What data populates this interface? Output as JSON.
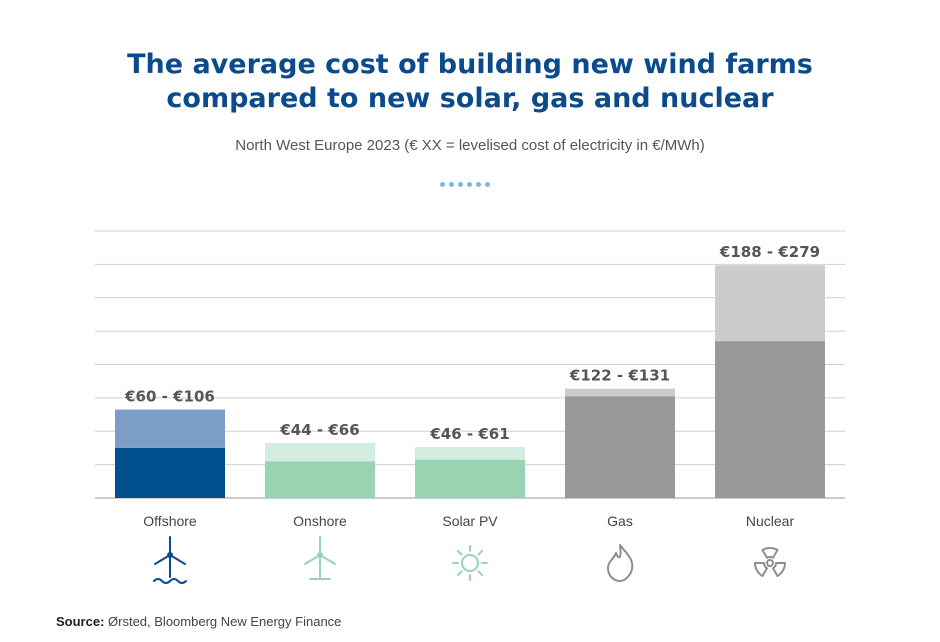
{
  "chart_data": {
    "type": "bar",
    "title_line1": "The average cost of building new wind farms",
    "title_line2": "compared to new solar, gas and nuclear",
    "subtitle": "North West Europe 2023 (€ XX = levelised cost of electricity in €/MWh)",
    "ylim": [
      0,
      320
    ],
    "grid": true,
    "categories": [
      "Offshore",
      "Onshore",
      "Solar PV",
      "Gas",
      "Nuclear"
    ],
    "series": [
      {
        "name": "low",
        "values": [
          60,
          44,
          46,
          122,
          188
        ]
      },
      {
        "name": "high",
        "values": [
          106,
          66,
          61,
          131,
          279
        ]
      }
    ],
    "range_labels": [
      "€60 - €106",
      "€44 - €66",
      "€46 - €61",
      "€122 - €131",
      "€188 - €279"
    ],
    "icons": [
      "offshore-wind-turbine-icon",
      "onshore-wind-turbine-icon",
      "sun-icon",
      "flame-icon",
      "radiation-icon"
    ],
    "colors": {
      "low": [
        "#00508f",
        "#99d4b2",
        "#99d4b2",
        "#999999",
        "#999999"
      ],
      "high": [
        "#7d9dc9",
        "#d3ede0",
        "#d3ede0",
        "#cccccc",
        "#cccccc"
      ],
      "icon": [
        "#0b4a8b",
        "#99d4b2",
        "#99d4b2",
        "#8e8e8e",
        "#8e8e8e"
      ]
    }
  },
  "source": {
    "label": "Source:",
    "text": " Ørsted, Bloomberg New Energy Finance"
  }
}
